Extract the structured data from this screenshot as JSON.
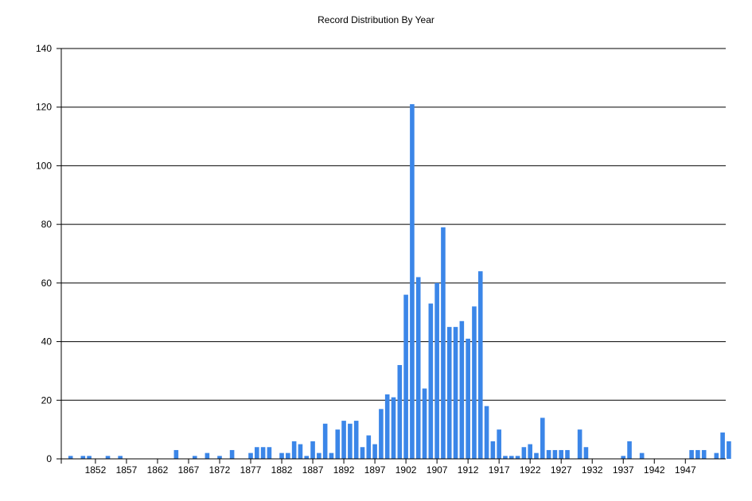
{
  "chart_data": {
    "type": "bar",
    "title": "Record Distribution By Year",
    "xlabel": "",
    "ylabel": "",
    "ylim": [
      0,
      140
    ],
    "yticks": [
      0,
      20,
      40,
      60,
      80,
      100,
      120,
      140
    ],
    "xlim": [
      1847,
      1953
    ],
    "xticks": [
      1852,
      1857,
      1862,
      1867,
      1872,
      1877,
      1882,
      1887,
      1892,
      1897,
      1902,
      1907,
      1912,
      1917,
      1922,
      1927,
      1932,
      1937,
      1942,
      1947
    ],
    "grid": true,
    "bar_color": "#3b86e8",
    "points": [
      {
        "x": 1848,
        "y": 1
      },
      {
        "x": 1850,
        "y": 1
      },
      {
        "x": 1851,
        "y": 1
      },
      {
        "x": 1854,
        "y": 1
      },
      {
        "x": 1856,
        "y": 1
      },
      {
        "x": 1865,
        "y": 3
      },
      {
        "x": 1868,
        "y": 1
      },
      {
        "x": 1870,
        "y": 2
      },
      {
        "x": 1872,
        "y": 1
      },
      {
        "x": 1874,
        "y": 3
      },
      {
        "x": 1877,
        "y": 2
      },
      {
        "x": 1878,
        "y": 4
      },
      {
        "x": 1879,
        "y": 4
      },
      {
        "x": 1880,
        "y": 4
      },
      {
        "x": 1882,
        "y": 2
      },
      {
        "x": 1883,
        "y": 2
      },
      {
        "x": 1884,
        "y": 6
      },
      {
        "x": 1885,
        "y": 5
      },
      {
        "x": 1886,
        "y": 1
      },
      {
        "x": 1887,
        "y": 6
      },
      {
        "x": 1888,
        "y": 2
      },
      {
        "x": 1889,
        "y": 12
      },
      {
        "x": 1890,
        "y": 2
      },
      {
        "x": 1891,
        "y": 10
      },
      {
        "x": 1892,
        "y": 13
      },
      {
        "x": 1893,
        "y": 12
      },
      {
        "x": 1894,
        "y": 13
      },
      {
        "x": 1895,
        "y": 4
      },
      {
        "x": 1896,
        "y": 8
      },
      {
        "x": 1897,
        "y": 5
      },
      {
        "x": 1898,
        "y": 17
      },
      {
        "x": 1899,
        "y": 22
      },
      {
        "x": 1900,
        "y": 21
      },
      {
        "x": 1901,
        "y": 32
      },
      {
        "x": 1902,
        "y": 56
      },
      {
        "x": 1903,
        "y": 121
      },
      {
        "x": 1904,
        "y": 62
      },
      {
        "x": 1905,
        "y": 24
      },
      {
        "x": 1906,
        "y": 53
      },
      {
        "x": 1907,
        "y": 60
      },
      {
        "x": 1908,
        "y": 79
      },
      {
        "x": 1909,
        "y": 45
      },
      {
        "x": 1910,
        "y": 45
      },
      {
        "x": 1911,
        "y": 47
      },
      {
        "x": 1912,
        "y": 41
      },
      {
        "x": 1913,
        "y": 52
      },
      {
        "x": 1914,
        "y": 64
      },
      {
        "x": 1915,
        "y": 18
      },
      {
        "x": 1916,
        "y": 6
      },
      {
        "x": 1917,
        "y": 10
      },
      {
        "x": 1918,
        "y": 1
      },
      {
        "x": 1919,
        "y": 1
      },
      {
        "x": 1920,
        "y": 1
      },
      {
        "x": 1921,
        "y": 4
      },
      {
        "x": 1922,
        "y": 5
      },
      {
        "x": 1923,
        "y": 2
      },
      {
        "x": 1924,
        "y": 14
      },
      {
        "x": 1925,
        "y": 3
      },
      {
        "x": 1926,
        "y": 3
      },
      {
        "x": 1927,
        "y": 3
      },
      {
        "x": 1928,
        "y": 3
      },
      {
        "x": 1930,
        "y": 10
      },
      {
        "x": 1931,
        "y": 4
      },
      {
        "x": 1937,
        "y": 1
      },
      {
        "x": 1938,
        "y": 6
      },
      {
        "x": 1940,
        "y": 2
      },
      {
        "x": 1948,
        "y": 3
      },
      {
        "x": 1949,
        "y": 3
      },
      {
        "x": 1950,
        "y": 3
      },
      {
        "x": 1952,
        "y": 2
      },
      {
        "x": 1953,
        "y": 9
      },
      {
        "x": 1954,
        "y": 6
      }
    ]
  }
}
